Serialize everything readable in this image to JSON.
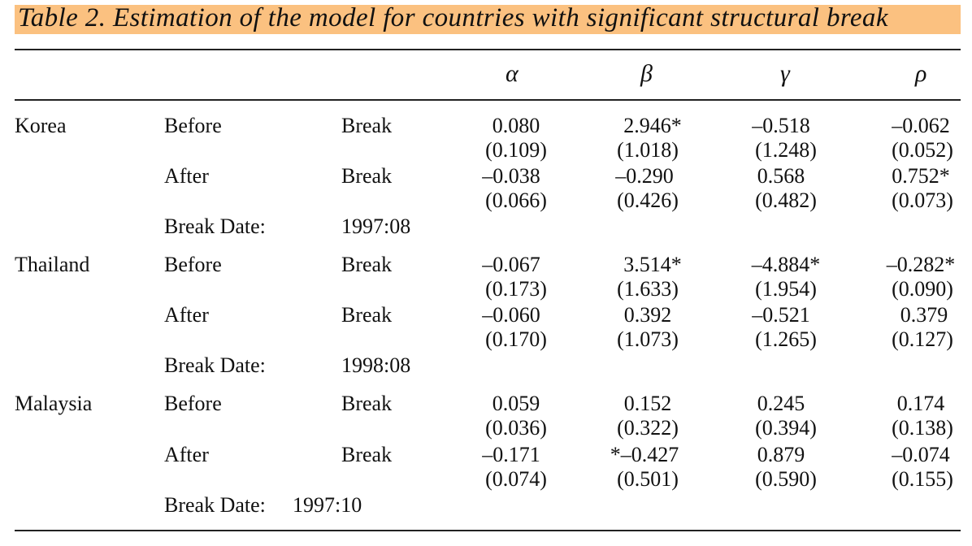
{
  "caption": "Table 2.  Estimation of the model for countries with significant structural break",
  "headers": [
    "α",
    "β",
    "γ",
    "ρ"
  ],
  "countries": [
    {
      "name": "Korea",
      "before_label": "Before",
      "after_label": "After",
      "break_word": "Break",
      "before": [
        "0.080",
        "2.946*",
        "–0.518",
        "–0.062"
      ],
      "before_se": [
        "(0.109)",
        "(1.018)",
        "(1.248)",
        "(0.052)"
      ],
      "after": [
        "–0.038",
        "–0.290",
        "0.568",
        "0.752*"
      ],
      "after_se": [
        "(0.066)",
        "(0.426)",
        "(0.482)",
        "(0.073)"
      ],
      "break_date_label": "Break Date:",
      "break_date": "1997:08"
    },
    {
      "name": "Thailand",
      "before_label": "Before",
      "after_label": "After",
      "break_word": "Break",
      "before": [
        "–0.067",
        "3.514*",
        "–4.884*",
        "–0.282*"
      ],
      "before_se": [
        "(0.173)",
        "(1.633)",
        "(1.954)",
        "(0.090)"
      ],
      "after": [
        "–0.060",
        "0.392",
        "–0.521",
        "0.379"
      ],
      "after_se": [
        "(0.170)",
        "(1.073)",
        "(1.265)",
        "(0.127)"
      ],
      "break_date_label": "Break Date:",
      "break_date": "1998:08"
    },
    {
      "name": "Malaysia",
      "before_label": "Before",
      "after_label": "After",
      "break_word": "Break",
      "before": [
        "0.059",
        "0.152",
        "0.245",
        "0.174"
      ],
      "before_se": [
        "(0.036)",
        "(0.322)",
        "(0.394)",
        "(0.138)"
      ],
      "after": [
        "–0.171",
        "*–0.427",
        "0.879",
        "–0.074"
      ],
      "after_se": [
        "(0.074)",
        "(0.501)",
        "(0.590)",
        "(0.155)"
      ],
      "break_date_label": "Break Date:",
      "break_date": "1997:10"
    }
  ]
}
